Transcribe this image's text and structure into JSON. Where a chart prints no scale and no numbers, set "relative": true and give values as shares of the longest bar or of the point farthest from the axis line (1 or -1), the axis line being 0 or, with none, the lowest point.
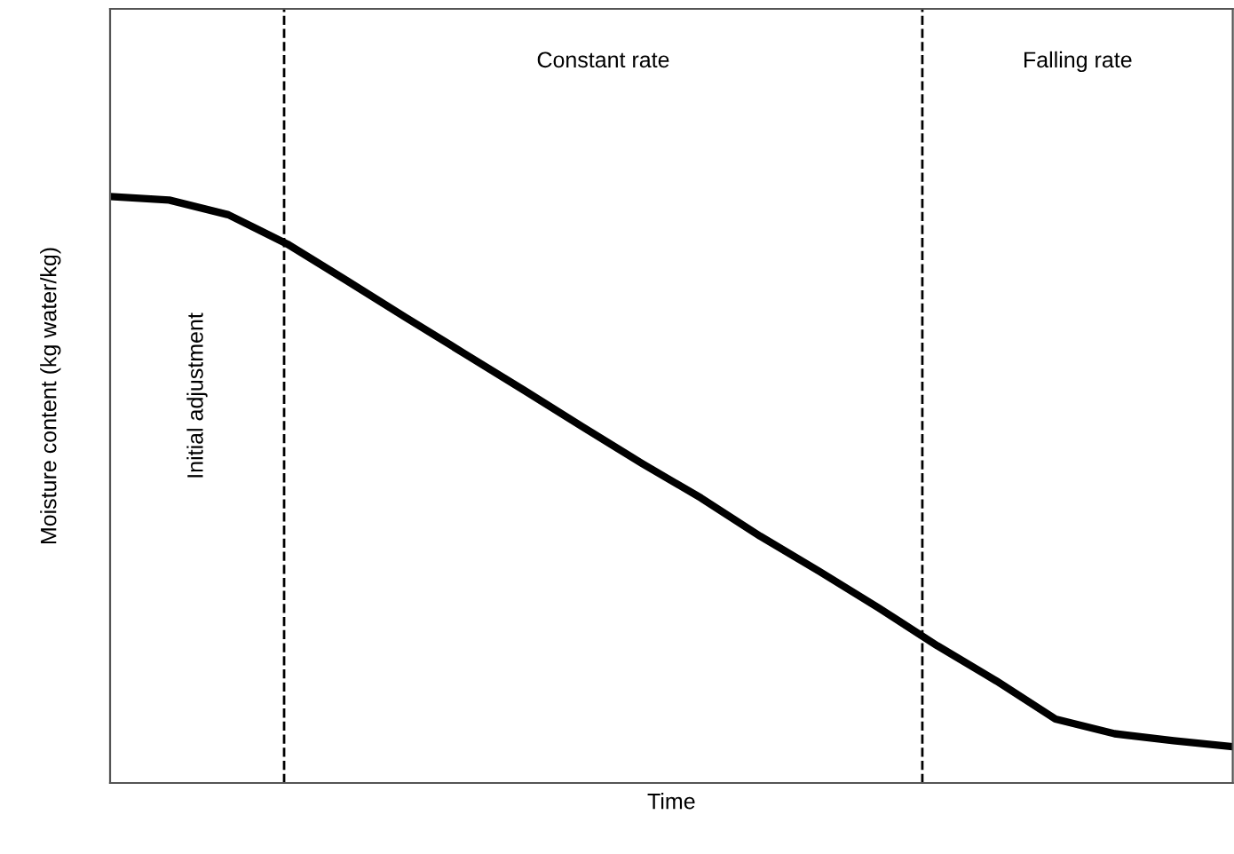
{
  "chart_data": {
    "type": "line",
    "relative": true,
    "xlabel": "Time",
    "ylabel": "Moisture content (kg water/kg)",
    "categories": [
      null,
      null,
      null,
      null,
      null,
      null,
      null,
      null,
      null,
      null,
      null,
      null,
      null,
      null,
      null,
      null,
      null,
      null,
      null,
      null
    ],
    "series": [
      {
        "color": "#000000",
        "values": [
          1,
          0.994,
          0.969,
          0.919,
          0.857,
          0.794,
          0.732,
          0.67,
          0.607,
          0.545,
          0.486,
          0.421,
          0.361,
          0.299,
          0.234,
          0.174,
          0.109,
          0.084,
          0.072,
          0.062
        ]
      }
    ],
    "annotations": [
      "Initial adjustment",
      "Constant rate",
      "Falling rate"
    ],
    "legend": false,
    "marker": "none",
    "line_style": "solid"
  }
}
